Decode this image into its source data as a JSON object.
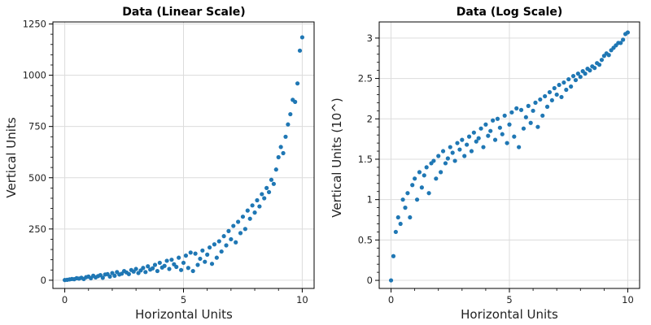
{
  "colors": {
    "series": "#1f77b4",
    "grid": "#dcdcdc",
    "axis": "#000000"
  },
  "chart_data": [
    {
      "type": "scatter",
      "title": "Data (Linear Scale)",
      "xlabel": "Horizontal Units",
      "ylabel": "Vertical Units",
      "xlim": [
        -0.5,
        10.5
      ],
      "ylim": [
        -40,
        1260
      ],
      "xticks": [
        0,
        5,
        10
      ],
      "xtick_labels": [
        "0",
        "5",
        "10"
      ],
      "yticks": [
        0,
        250,
        500,
        750,
        1000,
        1250
      ],
      "ytick_labels": [
        "0",
        "250",
        "500",
        "750",
        "1000",
        "1250"
      ],
      "grid": true,
      "series": [
        {
          "color": "#1f77b4",
          "x": [
            0.0,
            0.1,
            0.2,
            0.3,
            0.4,
            0.5,
            0.6,
            0.7,
            0.8,
            0.9,
            1.0,
            1.1,
            1.2,
            1.3,
            1.4,
            1.5,
            1.6,
            1.7,
            1.8,
            1.9,
            2.0,
            2.1,
            2.2,
            2.3,
            2.4,
            2.5,
            2.6,
            2.7,
            2.8,
            2.9,
            3.0,
            3.1,
            3.2,
            3.3,
            3.4,
            3.5,
            3.6,
            3.7,
            3.8,
            3.9,
            4.0,
            4.1,
            4.2,
            4.3,
            4.4,
            4.5,
            4.6,
            4.7,
            4.8,
            4.9,
            5.0,
            5.1,
            5.2,
            5.3,
            5.4,
            5.5,
            5.6,
            5.7,
            5.8,
            5.9,
            6.0,
            6.1,
            6.2,
            6.3,
            6.4,
            6.5,
            6.6,
            6.7,
            6.8,
            6.9,
            7.0,
            7.1,
            7.2,
            7.3,
            7.4,
            7.5,
            7.6,
            7.7,
            7.8,
            7.9,
            8.0,
            8.1,
            8.2,
            8.3,
            8.4,
            8.5,
            8.6,
            8.7,
            8.8,
            8.9,
            9.0,
            9.1,
            9.2,
            9.3,
            9.4,
            9.5,
            9.6,
            9.7,
            9.8,
            9.9,
            10.0
          ],
          "y": [
            1,
            2,
            4,
            6,
            5,
            10,
            8,
            12,
            6,
            15,
            18,
            10,
            22,
            14,
            20,
            25,
            12,
            28,
            30,
            18,
            35,
            22,
            40,
            28,
            32,
            45,
            38,
            30,
            50,
            42,
            55,
            35,
            48,
            60,
            40,
            68,
            52,
            58,
            75,
            45,
            85,
            62,
            70,
            95,
            55,
            100,
            78,
            65,
            110,
            50,
            85,
            120,
            60,
            135,
            45,
            130,
            75,
            105,
            145,
            90,
            125,
            160,
            80,
            175,
            110,
            190,
            140,
            215,
            170,
            240,
            200,
            265,
            185,
            285,
            230,
            310,
            250,
            340,
            300,
            365,
            330,
            390,
            360,
            420,
            400,
            450,
            430,
            490,
            470,
            540,
            600,
            650,
            620,
            700,
            760,
            810,
            880,
            870,
            960,
            1120,
            1185
          ]
        }
      ]
    },
    {
      "type": "scatter",
      "title": "Data (Log Scale)",
      "xlabel": "Horizontal Units",
      "ylabel": "Vertical Units (10^)",
      "xlim": [
        -0.5,
        10.5
      ],
      "ylim": [
        -0.1,
        3.2
      ],
      "xticks": [
        0,
        5,
        10
      ],
      "xtick_labels": [
        "0",
        "5",
        "10"
      ],
      "yticks": [
        0,
        0.5,
        1,
        1.5,
        2,
        2.5,
        3
      ],
      "ytick_labels": [
        "0",
        "0.5",
        "1",
        "1.5",
        "2",
        "2.5",
        "3"
      ],
      "grid": true,
      "series": [
        {
          "color": "#1f77b4",
          "x": [
            0.0,
            0.1,
            0.2,
            0.3,
            0.4,
            0.5,
            0.6,
            0.7,
            0.8,
            0.9,
            1.0,
            1.1,
            1.2,
            1.3,
            1.4,
            1.5,
            1.6,
            1.7,
            1.8,
            1.9,
            2.0,
            2.1,
            2.2,
            2.3,
            2.4,
            2.5,
            2.6,
            2.7,
            2.8,
            2.9,
            3.0,
            3.1,
            3.2,
            3.3,
            3.4,
            3.5,
            3.6,
            3.7,
            3.8,
            3.9,
            4.0,
            4.1,
            4.2,
            4.3,
            4.4,
            4.5,
            4.6,
            4.7,
            4.8,
            4.9,
            5.0,
            5.1,
            5.2,
            5.3,
            5.4,
            5.5,
            5.6,
            5.7,
            5.8,
            5.9,
            6.0,
            6.1,
            6.2,
            6.3,
            6.4,
            6.5,
            6.6,
            6.7,
            6.8,
            6.9,
            7.0,
            7.1,
            7.2,
            7.3,
            7.4,
            7.5,
            7.6,
            7.7,
            7.8,
            7.9,
            8.0,
            8.1,
            8.2,
            8.3,
            8.4,
            8.5,
            8.6,
            8.7,
            8.8,
            8.9,
            9.0,
            9.1,
            9.2,
            9.3,
            9.4,
            9.5,
            9.6,
            9.7,
            9.8,
            9.9,
            10.0
          ],
          "y": [
            0.0,
            0.3,
            0.6,
            0.78,
            0.7,
            1.0,
            0.9,
            1.08,
            0.78,
            1.18,
            1.26,
            1.0,
            1.34,
            1.15,
            1.3,
            1.4,
            1.08,
            1.45,
            1.48,
            1.26,
            1.54,
            1.34,
            1.6,
            1.45,
            1.51,
            1.65,
            1.58,
            1.48,
            1.7,
            1.62,
            1.74,
            1.54,
            1.68,
            1.78,
            1.6,
            1.83,
            1.72,
            1.76,
            1.88,
            1.65,
            1.93,
            1.79,
            1.85,
            1.98,
            1.74,
            2.0,
            1.89,
            1.81,
            2.04,
            1.7,
            1.93,
            2.08,
            1.78,
            2.13,
            1.65,
            2.11,
            1.88,
            2.02,
            2.16,
            1.95,
            2.1,
            2.2,
            1.9,
            2.24,
            2.04,
            2.28,
            2.15,
            2.33,
            2.23,
            2.38,
            2.3,
            2.42,
            2.27,
            2.45,
            2.36,
            2.49,
            2.4,
            2.53,
            2.48,
            2.56,
            2.52,
            2.59,
            2.56,
            2.62,
            2.6,
            2.65,
            2.63,
            2.69,
            2.67,
            2.73,
            2.78,
            2.81,
            2.79,
            2.85,
            2.88,
            2.91,
            2.94,
            2.94,
            2.98,
            3.05,
            3.07
          ]
        }
      ]
    }
  ]
}
